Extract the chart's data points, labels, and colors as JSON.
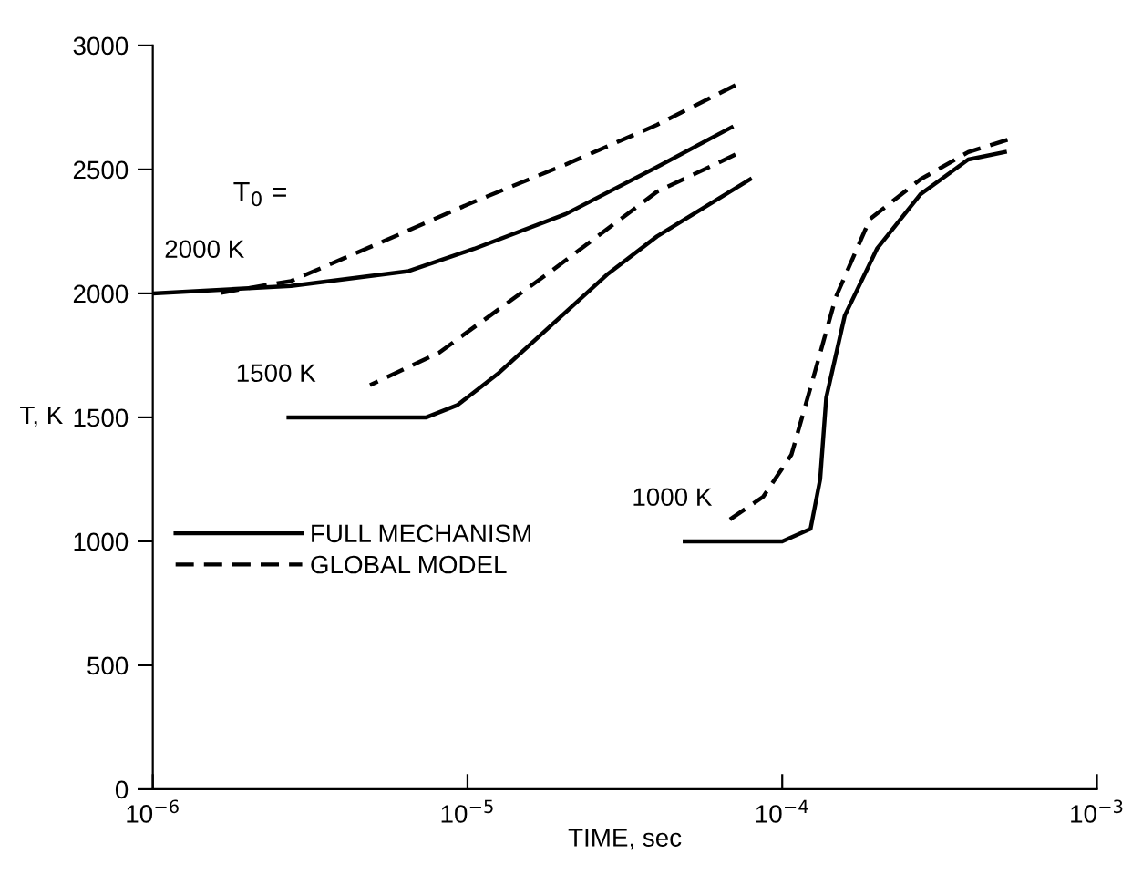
{
  "chart_data": {
    "type": "line",
    "xlabel": "TIME, sec",
    "ylabel": "T, K",
    "log": "x",
    "grid": false,
    "legend": "left",
    "marker": "none",
    "xlim": [
      1e-06,
      0.001
    ],
    "xticks": [
      {
        "value": 1e-06,
        "label": "10$^{−6}$"
      },
      {
        "value": 1e-05,
        "label": "10$^{−5}$"
      },
      {
        "value": 0.0001,
        "label": "10$^{−4}$"
      },
      {
        "value": 0.001,
        "label": "10$^{−3}$"
      }
    ],
    "ylim": [
      0,
      3000
    ],
    "yticks": [
      0,
      500,
      1000,
      1500,
      2000,
      2500,
      3000
    ],
    "series": [
      {
        "name": "FULL MECHANISM",
        "color": "#000000",
        "line_style": "solid",
        "x": [
          1e-06,
          2.75e-06,
          6.5e-06,
          1.05e-05,
          2.05e-05,
          4e-05,
          6.9e-05
        ],
        "values": [
          2000,
          2030,
          2090,
          2180,
          2320,
          2510,
          2670
        ]
      },
      {
        "name": "GLOBAL MODEL",
        "color": "#000000",
        "line_style": "dashed",
        "x": [
          1.6e-06,
          2.75e-06,
          5.4e-06,
          1.05e-05,
          2.05e-05,
          4e-05,
          7.1e-05
        ],
        "values": [
          2000,
          2050,
          2210,
          2370,
          2520,
          2680,
          2840
        ]
      },
      {
        "color": "#000000",
        "line_style": "solid",
        "x": [
          2.7e-06,
          7.4e-06,
          9.3e-06,
          1.26e-05,
          2.8e-05,
          4e-05,
          7.9e-05
        ],
        "values": [
          1500,
          1500,
          1550,
          1680,
          2080,
          2230,
          2460
        ]
      },
      {
        "color": "#000000",
        "line_style": "dashed",
        "x": [
          4.9e-06,
          8.1e-06,
          1.8e-05,
          4e-05,
          7.1e-05
        ],
        "values": [
          1630,
          1760,
          2080,
          2410,
          2560
        ]
      },
      {
        "color": "#000000",
        "line_style": "solid",
        "x": [
          4.9e-05,
          0.0001,
          0.000123,
          0.000132,
          0.000138,
          0.000158,
          0.0002,
          0.000275,
          0.00039,
          0.00051
        ],
        "values": [
          1000,
          1000,
          1050,
          1250,
          1580,
          1910,
          2180,
          2400,
          2540,
          2570
        ]
      },
      {
        "color": "#000000",
        "line_style": "dashed",
        "x": [
          6.5e-05,
          8.7e-05,
          0.000107,
          0.000123,
          0.000148,
          0.00019,
          0.000275,
          0.00039,
          0.00052
        ],
        "values": [
          1070,
          1180,
          1350,
          1620,
          1985,
          2300,
          2460,
          2570,
          2620
        ]
      }
    ],
    "annotations": [
      "T$_{0}$ =",
      {
        "text": "2000 K",
        "x": 1.6e-06,
        "y": 2000
      },
      {
        "text": "1500 K",
        "x": 2.7e-06,
        "y": 1500
      },
      {
        "text": "1000 K",
        "x": 4.9e-05,
        "y": 1000
      }
    ]
  }
}
